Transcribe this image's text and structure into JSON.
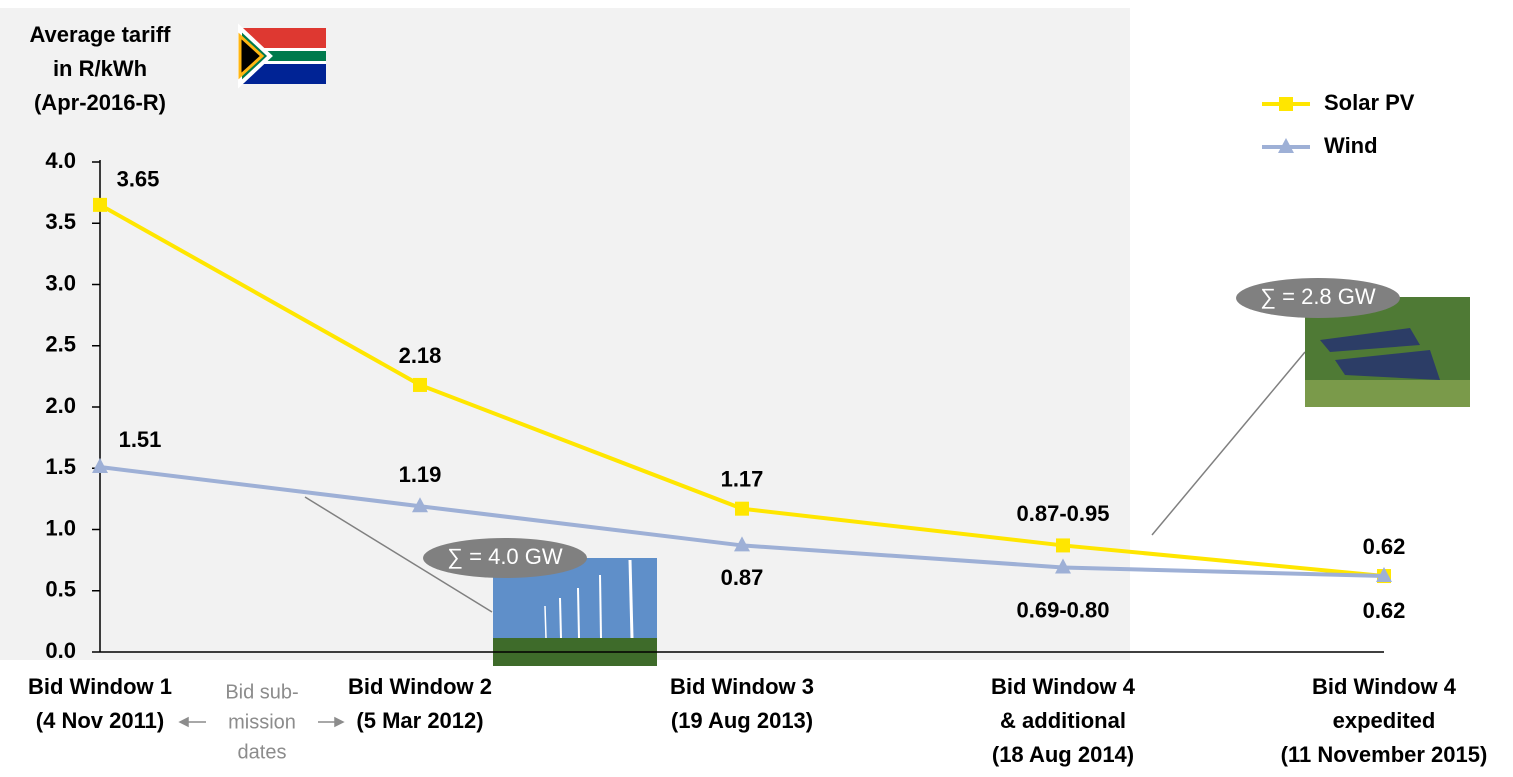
{
  "chart_data": {
    "type": "line",
    "y_title": [
      "Average tariff",
      "in R/kWh",
      "(Apr-2016-R)"
    ],
    "categories": [
      [
        "Bid Window 1",
        "(4 Nov 2011)"
      ],
      [
        "Bid Window 2",
        "(5 Mar 2012)"
      ],
      [
        "Bid Window 3",
        "(19 Aug 2013)"
      ],
      [
        "Bid Window 4",
        "& additional",
        "(18 Aug 2014)"
      ],
      [
        "Bid Window 4",
        "expedited",
        "(11 November 2015)"
      ]
    ],
    "series": [
      {
        "name": "Solar PV",
        "color": "#ffe600",
        "marker": "square",
        "values": [
          3.65,
          2.18,
          1.17,
          0.87,
          0.62
        ],
        "value_labels": [
          "3.65",
          "2.18",
          "1.17",
          "0.87-0.95",
          "0.62"
        ]
      },
      {
        "name": "Wind",
        "color": "#9eb0d6",
        "marker": "triangle",
        "values": [
          1.51,
          1.19,
          0.87,
          0.69,
          0.62
        ],
        "value_labels": [
          "1.51",
          "1.19",
          "0.87",
          "0.69-0.80",
          "0.62"
        ]
      }
    ],
    "ylim": [
      0,
      4
    ],
    "yticks": [
      {
        "value": 0,
        "label": "0.0"
      },
      0.5,
      {
        "value": 1,
        "label": "1.0"
      },
      1.5,
      {
        "value": 2,
        "label": "2.0"
      },
      2.5,
      {
        "value": 3,
        "label": "3.0"
      },
      3.5,
      {
        "value": 4,
        "label": "4.0"
      }
    ],
    "submission_note": [
      "Bid sub-",
      "mission",
      "dates"
    ],
    "annotations": [
      "∑ = 4.0 GW",
      "∑ = 2.8 GW"
    ]
  }
}
